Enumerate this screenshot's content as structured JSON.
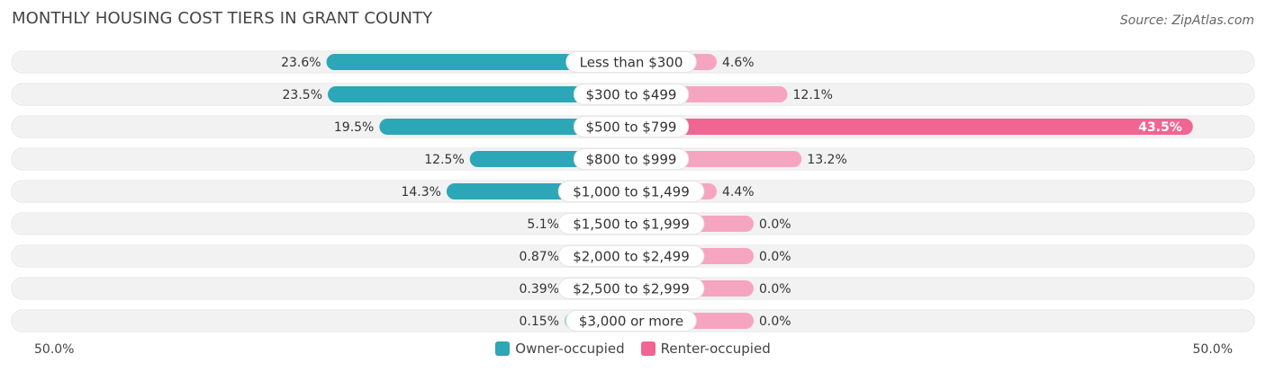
{
  "title": "MONTHLY HOUSING COST TIERS IN GRANT COUNTY",
  "source": "Source: ZipAtlas.com",
  "colors": {
    "owner": "#2ba7b8",
    "owner_light": "#85cfd8",
    "renter": "#f06592",
    "renter_light": "#f6a5c0",
    "track": "#eeeeee"
  },
  "chart_data": {
    "type": "bar",
    "orientation": "diverging-horizontal",
    "categories": [
      "Less than $300",
      "$300 to $499",
      "$500 to $799",
      "$800 to $999",
      "$1,000 to $1,499",
      "$1,500 to $1,999",
      "$2,000 to $2,499",
      "$2,500 to $2,999",
      "$3,000 or more"
    ],
    "series": [
      {
        "name": "Owner-occupied",
        "side": "left",
        "values": [
          23.6,
          23.5,
          19.5,
          12.5,
          14.3,
          5.1,
          0.87,
          0.39,
          0.15
        ],
        "labels": [
          "23.6%",
          "23.5%",
          "19.5%",
          "12.5%",
          "14.3%",
          "5.1%",
          "0.87%",
          "0.39%",
          "0.15%"
        ]
      },
      {
        "name": "Renter-occupied",
        "side": "right",
        "values": [
          4.6,
          12.1,
          43.5,
          13.2,
          4.4,
          0.0,
          0.0,
          0.0,
          0.0
        ],
        "labels": [
          "4.6%",
          "12.1%",
          "43.5%",
          "13.2%",
          "4.4%",
          "0.0%",
          "0.0%",
          "0.0%",
          "0.0%"
        ]
      }
    ],
    "xlim": [
      -50,
      50
    ],
    "axis_min_label": "50.0%",
    "axis_max_label": "50.0%",
    "legend_position": "bottom-center"
  }
}
